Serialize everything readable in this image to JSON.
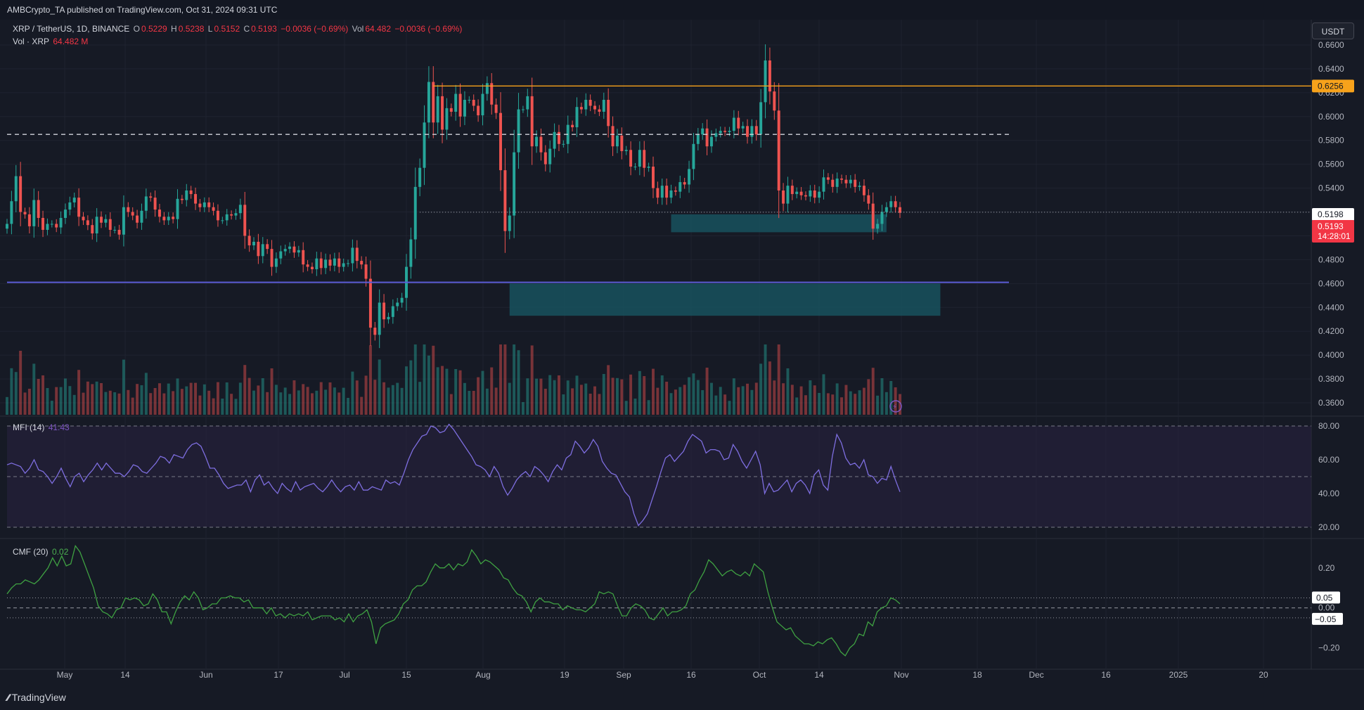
{
  "header": {
    "publisher_line": "AMBCrypto_TA published on TradingView.com, Oct 31, 2024 09:31 UTC"
  },
  "legend": {
    "symbol": "XRP / TetherUS, 1D, BINANCE",
    "open_label": "O",
    "open": "0.5229",
    "high_label": "H",
    "high": "0.5238",
    "low_label": "L",
    "low": "0.5152",
    "close_label": "C",
    "close": "0.5193",
    "change": "−0.0036 (−0.69%)",
    "vol_label": "Vol",
    "vol": "64.482",
    "vol_change": "−0.0036 (−0.69%)",
    "vol_line_label": "Vol · XRP",
    "vol_line_value": "64.482 M"
  },
  "currency_button": "USDT",
  "logo_text": "TradingView",
  "colors": {
    "background": "#161a25",
    "up": "#26a69a",
    "down": "#ef5350",
    "orange": "#f7a21b",
    "purple_line": "#5b5cd6",
    "zone": "#17525e",
    "mfi": "#7e6ee0",
    "cmf": "#3fa142",
    "price_badge": "#f23645"
  },
  "chart_data": [
    {
      "type": "candlestick",
      "title": "",
      "ylim": [
        0.35,
        0.68
      ],
      "y_ticks": [
        "0.6600",
        "0.6400",
        "0.6200",
        "0.6000",
        "0.5800",
        "0.5600",
        "0.5400",
        "0.5200",
        "0.5000",
        "0.4800",
        "0.4600",
        "0.4400",
        "0.4200",
        "0.4000",
        "0.3800",
        "0.3600"
      ],
      "x_ticks": [
        "May",
        "14",
        "Jun",
        "17",
        "Jul",
        "15",
        "Aug",
        "19",
        "Sep",
        "16",
        "Oct",
        "14",
        "Nov",
        "18",
        "Dec",
        "16",
        "2025",
        "20"
      ],
      "close": [
        0.51,
        0.529,
        0.55,
        0.52,
        0.518,
        0.508,
        0.53,
        0.515,
        0.505,
        0.51,
        0.51,
        0.507,
        0.515,
        0.522,
        0.528,
        0.532,
        0.516,
        0.513,
        0.509,
        0.502,
        0.516,
        0.511,
        0.514,
        0.505,
        0.505,
        0.501,
        0.524,
        0.52,
        0.517,
        0.511,
        0.521,
        0.533,
        0.532,
        0.522,
        0.516,
        0.513,
        0.516,
        0.514,
        0.531,
        0.53,
        0.538,
        0.535,
        0.527,
        0.524,
        0.528,
        0.524,
        0.521,
        0.513,
        0.513,
        0.518,
        0.517,
        0.519,
        0.526,
        0.5,
        0.492,
        0.495,
        0.483,
        0.493,
        0.489,
        0.474,
        0.481,
        0.487,
        0.489,
        0.491,
        0.486,
        0.488,
        0.476,
        0.474,
        0.472,
        0.481,
        0.473,
        0.48,
        0.475,
        0.481,
        0.474,
        0.477,
        0.477,
        0.49,
        0.479,
        0.476,
        0.464,
        0.423,
        0.417,
        0.444,
        0.43,
        0.432,
        0.441,
        0.444,
        0.448,
        0.474,
        0.497,
        0.541,
        0.557,
        0.595,
        0.629,
        0.595,
        0.617,
        0.589,
        0.607,
        0.604,
        0.619,
        0.6,
        0.614,
        0.614,
        0.609,
        0.601,
        0.619,
        0.628,
        0.61,
        0.603,
        0.555,
        0.504,
        0.517,
        0.57,
        0.606,
        0.606,
        0.617,
        0.575,
        0.583,
        0.57,
        0.56,
        0.573,
        0.587,
        0.577,
        0.577,
        0.593,
        0.591,
        0.608,
        0.606,
        0.614,
        0.609,
        0.606,
        0.604,
        0.614,
        0.592,
        0.575,
        0.584,
        0.571,
        0.572,
        0.558,
        0.558,
        0.572,
        0.557,
        0.558,
        0.54,
        0.532,
        0.542,
        0.532,
        0.538,
        0.537,
        0.545,
        0.543,
        0.556,
        0.577,
        0.585,
        0.59,
        0.575,
        0.583,
        0.586,
        0.588,
        0.587,
        0.588,
        0.599,
        0.59,
        0.592,
        0.583,
        0.592,
        0.585,
        0.612,
        0.647,
        0.621,
        0.605,
        0.538,
        0.527,
        0.542,
        0.535,
        0.537,
        0.534,
        0.533,
        0.538,
        0.532,
        0.537,
        0.549,
        0.547,
        0.541,
        0.548,
        0.547,
        0.544,
        0.547,
        0.541,
        0.542,
        0.534,
        0.527,
        0.506,
        0.51,
        0.52,
        0.524,
        0.529,
        0.524,
        0.5193
      ],
      "horizontal_levels": {
        "resistance_orange": 0.6256,
        "dashed_level": 0.585,
        "support_purple": 0.461,
        "current_dotted": 0.5198
      },
      "zones": [
        {
          "from": 0.503,
          "to": 0.518
        },
        {
          "from": 0.433,
          "to": 0.46
        }
      ],
      "price_labels": {
        "orange_level": "0.6256",
        "last_line": "0.5198",
        "current": "0.5193",
        "countdown": "14:28:01"
      }
    },
    {
      "type": "line",
      "title": "MFI (14)",
      "value_label": "41.43",
      "ylim": [
        15,
        85
      ],
      "y_ticks": [
        "80.00",
        "60.00",
        "40.00",
        "20.00"
      ],
      "bands": [
        80,
        50,
        20
      ],
      "values": [
        57,
        58,
        57,
        56,
        52,
        55,
        60,
        54,
        53,
        50,
        46,
        50,
        55,
        49,
        44,
        50,
        52,
        47,
        51,
        54,
        58,
        54,
        58,
        55,
        52,
        52,
        50,
        53,
        57,
        56,
        53,
        52,
        55,
        58,
        62,
        61,
        58,
        63,
        62,
        61,
        66,
        69,
        70,
        68,
        62,
        55,
        55,
        51,
        46,
        43,
        44,
        45,
        45,
        48,
        41,
        48,
        51,
        45,
        47,
        43,
        40,
        46,
        43,
        41,
        47,
        42,
        44,
        45,
        46,
        43,
        41,
        44,
        48,
        44,
        41,
        44,
        45,
        42,
        47,
        42,
        42,
        44,
        43,
        42,
        48,
        46,
        47,
        45,
        52,
        60,
        66,
        70,
        74,
        75,
        80,
        79,
        76,
        77,
        81,
        78,
        74,
        70,
        66,
        62,
        57,
        56,
        54,
        50,
        56,
        52,
        44,
        39,
        43,
        48,
        51,
        53,
        50,
        56,
        54,
        51,
        47,
        53,
        57,
        54,
        61,
        63,
        71,
        68,
        64,
        67,
        72,
        68,
        59,
        55,
        52,
        51,
        46,
        41,
        38,
        28,
        21,
        24,
        28,
        36,
        44,
        53,
        61,
        63,
        59,
        62,
        65,
        71,
        75,
        73,
        71,
        64,
        66,
        66,
        65,
        60,
        61,
        69,
        65,
        59,
        55,
        60,
        65,
        57,
        40,
        46,
        41,
        42,
        45,
        48,
        41,
        46,
        48,
        45,
        40,
        51,
        54,
        45,
        42,
        62,
        75,
        70,
        61,
        57,
        58,
        55,
        60,
        51,
        50,
        46,
        49,
        48,
        56,
        48,
        41
      ]
    },
    {
      "type": "line",
      "title": "CMF (20)",
      "value_label": "0.02",
      "ylim": [
        -0.3,
        0.34
      ],
      "y_ticks": [
        "0.20",
        "0.00",
        "−0.20"
      ],
      "bands": [
        0.05,
        0.0,
        -0.05
      ],
      "highlight_labels": [
        "0.05",
        "−0.05"
      ],
      "values": [
        0.07,
        0.1,
        0.12,
        0.12,
        0.14,
        0.13,
        0.12,
        0.14,
        0.17,
        0.2,
        0.25,
        0.21,
        0.26,
        0.21,
        0.22,
        0.31,
        0.28,
        0.22,
        0.16,
        0.1,
        0.01,
        -0.02,
        -0.03,
        -0.05,
        -0.01,
        0.0,
        0.05,
        0.04,
        0.05,
        0.04,
        0.01,
        0.02,
        0.07,
        0.04,
        -0.02,
        -0.02,
        -0.08,
        -0.02,
        0.03,
        0.06,
        0.04,
        0.08,
        0.05,
        -0.01,
        0.0,
        0.02,
        0.02,
        0.05,
        0.05,
        0.06,
        0.05,
        0.05,
        0.03,
        0.04,
        0.0,
        0.0,
        0.0,
        -0.03,
        0.0,
        -0.04,
        -0.03,
        -0.05,
        -0.03,
        -0.04,
        -0.03,
        -0.04,
        -0.02,
        -0.06,
        -0.05,
        -0.04,
        -0.04,
        -0.04,
        -0.06,
        -0.05,
        -0.07,
        -0.03,
        -0.07,
        -0.04,
        -0.03,
        -0.01,
        -0.07,
        -0.18,
        -0.1,
        -0.08,
        -0.07,
        -0.06,
        -0.03,
        0.02,
        0.04,
        0.09,
        0.11,
        0.11,
        0.13,
        0.18,
        0.22,
        0.2,
        0.2,
        0.22,
        0.19,
        0.22,
        0.21,
        0.23,
        0.29,
        0.26,
        0.22,
        0.24,
        0.23,
        0.21,
        0.19,
        0.15,
        0.14,
        0.1,
        0.07,
        0.06,
        0.03,
        -0.02,
        0.03,
        0.05,
        0.03,
        0.03,
        0.02,
        0.02,
        -0.01,
        0.01,
        0.0,
        -0.01,
        -0.01,
        -0.02,
        0.0,
        0.02,
        0.08,
        0.07,
        0.08,
        0.07,
        0.01,
        -0.04,
        -0.04,
        0.0,
        0.02,
        0.01,
        -0.01,
        -0.05,
        -0.06,
        -0.03,
        0.0,
        -0.04,
        -0.02,
        -0.02,
        -0.01,
        0.01,
        0.07,
        0.09,
        0.14,
        0.18,
        0.24,
        0.22,
        0.19,
        0.16,
        0.18,
        0.19,
        0.17,
        0.16,
        0.18,
        0.16,
        0.22,
        0.2,
        0.18,
        0.08,
        0.0,
        -0.07,
        -0.09,
        -0.11,
        -0.1,
        -0.14,
        -0.16,
        -0.18,
        -0.18,
        -0.19,
        -0.17,
        -0.18,
        -0.16,
        -0.15,
        -0.18,
        -0.22,
        -0.24,
        -0.2,
        -0.18,
        -0.13,
        -0.14,
        -0.07,
        -0.09,
        -0.02,
        0.0,
        0.01,
        0.05,
        0.04,
        0.02
      ]
    }
  ]
}
